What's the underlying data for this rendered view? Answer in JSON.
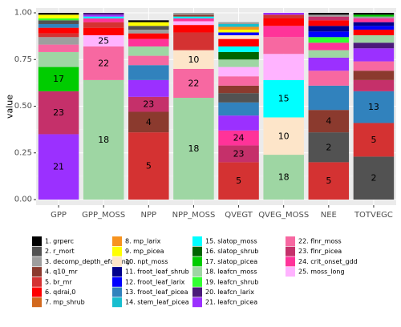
{
  "chart_data": {
    "type": "bar",
    "stacked": true,
    "title": "",
    "xlabel": "",
    "ylabel": "value",
    "ylim": [
      0,
      1
    ],
    "yticks": [
      "0.00",
      "0.25",
      "0.50",
      "0.75",
      "1.00"
    ],
    "categories": [
      "GPP",
      "GPP_MOSS",
      "NPP",
      "NPP_MOSS",
      "QVEGT",
      "QVEG_MOSS",
      "NEE",
      "TOTVEGC"
    ],
    "legend_position": "bottom",
    "params": [
      {
        "id": 1,
        "name": "grperc",
        "color": "#000000"
      },
      {
        "id": 2,
        "name": "r_mort",
        "color": "#525252"
      },
      {
        "id": 3,
        "name": "decomp_depth_efolding",
        "color": "#9e9e9e"
      },
      {
        "id": 4,
        "name": "q10_mr",
        "color": "#8b3a2e"
      },
      {
        "id": 5,
        "name": "br_mr",
        "color": "#d43232"
      },
      {
        "id": 6,
        "name": "qdrai,0",
        "color": "#ff0000"
      },
      {
        "id": 7,
        "name": "mp_shrub",
        "color": "#d2691e"
      },
      {
        "id": 8,
        "name": "mp_larix",
        "color": "#f7931e"
      },
      {
        "id": 9,
        "name": "mp_picea",
        "color": "#ffff00"
      },
      {
        "id": 10,
        "name": "npt_moss",
        "color": "#fde5c9"
      },
      {
        "id": 11,
        "name": "froot_leaf_shrub",
        "color": "#00008b"
      },
      {
        "id": 12,
        "name": "froot_leaf_larix",
        "color": "#0000ff"
      },
      {
        "id": 13,
        "name": "froot_leaf_picea",
        "color": "#3182bd"
      },
      {
        "id": 14,
        "name": "stem_leaf_picea",
        "color": "#17becf"
      },
      {
        "id": 15,
        "name": "slatop_moss",
        "color": "#00ffff"
      },
      {
        "id": 16,
        "name": "slatop_shrub",
        "color": "#006400"
      },
      {
        "id": 17,
        "name": "slatop_picea",
        "color": "#00cc00"
      },
      {
        "id": 18,
        "name": "leafcn_moss",
        "color": "#9ed6a3"
      },
      {
        "id": 19,
        "name": "leafcn_shrub",
        "color": "#33ff33"
      },
      {
        "id": 20,
        "name": "leafcn_larix",
        "color": "#4b1a7a"
      },
      {
        "id": 21,
        "name": "leafcn_picea",
        "color": "#9b30ff"
      },
      {
        "id": 22,
        "name": "flnr_moss",
        "color": "#f768a1"
      },
      {
        "id": 23,
        "name": "flnr_picea",
        "color": "#c5306a"
      },
      {
        "id": 24,
        "name": "crit_onset_gdd",
        "color": "#ff3399"
      },
      {
        "id": 25,
        "name": "moss_long",
        "color": "#ffb3ff"
      }
    ],
    "bars": [
      {
        "category": "GPP",
        "segments": [
          {
            "p": 21,
            "v": 0.35,
            "label": "21"
          },
          {
            "p": 23,
            "v": 0.23,
            "label": "23"
          },
          {
            "p": 17,
            "v": 0.13,
            "label": "17"
          },
          {
            "p": 18,
            "v": 0.08
          },
          {
            "p": 22,
            "v": 0.04
          },
          {
            "p": 3,
            "v": 0.04
          },
          {
            "p": 5,
            "v": 0.02
          },
          {
            "p": 6,
            "v": 0.03
          },
          {
            "p": 13,
            "v": 0.02
          },
          {
            "p": 2,
            "v": 0.02
          },
          {
            "p": 19,
            "v": 0.01
          },
          {
            "p": 9,
            "v": 0.02
          },
          {
            "p": 1,
            "v": 0.01
          }
        ]
      },
      {
        "category": "GPP_MOSS",
        "segments": [
          {
            "p": 18,
            "v": 0.64,
            "label": "18"
          },
          {
            "p": 22,
            "v": 0.18,
            "label": "22"
          },
          {
            "p": 25,
            "v": 0.06,
            "label": "25"
          },
          {
            "p": 6,
            "v": 0.04
          },
          {
            "p": 5,
            "v": 0.03
          },
          {
            "p": 24,
            "v": 0.02
          },
          {
            "p": 15,
            "v": 0.01
          },
          {
            "p": 21,
            "v": 0.01
          },
          {
            "p": 20,
            "v": 0.01
          }
        ]
      },
      {
        "category": "NPP",
        "segments": [
          {
            "p": 5,
            "v": 0.36,
            "label": "5"
          },
          {
            "p": 4,
            "v": 0.11,
            "label": "4"
          },
          {
            "p": 23,
            "v": 0.08,
            "label": "23"
          },
          {
            "p": 21,
            "v": 0.09
          },
          {
            "p": 13,
            "v": 0.08
          },
          {
            "p": 22,
            "v": 0.05
          },
          {
            "p": 18,
            "v": 0.05
          },
          {
            "p": 24,
            "v": 0.04
          },
          {
            "p": 6,
            "v": 0.03
          },
          {
            "p": 3,
            "v": 0.02
          },
          {
            "p": 2,
            "v": 0.02
          },
          {
            "p": 9,
            "v": 0.02
          },
          {
            "p": 1,
            "v": 0.01
          }
        ]
      },
      {
        "category": "NPP_MOSS",
        "segments": [
          {
            "p": 18,
            "v": 0.545,
            "label": "18"
          },
          {
            "p": 22,
            "v": 0.155,
            "label": "22"
          },
          {
            "p": 10,
            "v": 0.1,
            "label": "10"
          },
          {
            "p": 5,
            "v": 0.095
          },
          {
            "p": 6,
            "v": 0.04
          },
          {
            "p": 25,
            "v": 0.02
          },
          {
            "p": 24,
            "v": 0.015
          },
          {
            "p": 15,
            "v": 0.01
          },
          {
            "p": 4,
            "v": 0.01
          },
          {
            "p": 3,
            "v": 0.01
          }
        ]
      },
      {
        "category": "QVEGT",
        "segments": [
          {
            "p": 5,
            "v": 0.2,
            "label": "5"
          },
          {
            "p": 23,
            "v": 0.09,
            "label": "23"
          },
          {
            "p": 24,
            "v": 0.08,
            "label": "24"
          },
          {
            "p": 21,
            "v": 0.08
          },
          {
            "p": 13,
            "v": 0.07
          },
          {
            "p": 2,
            "v": 0.05
          },
          {
            "p": 4,
            "v": 0.04
          },
          {
            "p": 22,
            "v": 0.05
          },
          {
            "p": 25,
            "v": 0.05
          },
          {
            "p": 18,
            "v": 0.04
          },
          {
            "p": 16,
            "v": 0.04
          },
          {
            "p": 15,
            "v": 0.03
          },
          {
            "p": 6,
            "v": 0.04
          },
          {
            "p": 10,
            "v": 0.02
          },
          {
            "p": 12,
            "v": 0.015
          },
          {
            "p": 9,
            "v": 0.015
          },
          {
            "p": 8,
            "v": 0.015
          },
          {
            "p": 14,
            "v": 0.015
          },
          {
            "p": 3,
            "v": 0.01
          }
        ]
      },
      {
        "category": "QVEG_MOSS",
        "segments": [
          {
            "p": 18,
            "v": 0.24,
            "label": "18"
          },
          {
            "p": 10,
            "v": 0.2,
            "label": "10"
          },
          {
            "p": 15,
            "v": 0.2,
            "label": "15"
          },
          {
            "p": 25,
            "v": 0.14
          },
          {
            "p": 22,
            "v": 0.09
          },
          {
            "p": 24,
            "v": 0.06
          },
          {
            "p": 6,
            "v": 0.04
          },
          {
            "p": 5,
            "v": 0.02
          },
          {
            "p": 21,
            "v": 0.01
          }
        ]
      },
      {
        "category": "NEE",
        "segments": [
          {
            "p": 5,
            "v": 0.2,
            "label": "5"
          },
          {
            "p": 2,
            "v": 0.16,
            "label": "2"
          },
          {
            "p": 4,
            "v": 0.12,
            "label": "4"
          },
          {
            "p": 13,
            "v": 0.13
          },
          {
            "p": 22,
            "v": 0.08
          },
          {
            "p": 21,
            "v": 0.07
          },
          {
            "p": 18,
            "v": 0.04
          },
          {
            "p": 24,
            "v": 0.04
          },
          {
            "p": 19,
            "v": 0.03
          },
          {
            "p": 12,
            "v": 0.03
          },
          {
            "p": 11,
            "v": 0.03
          },
          {
            "p": 6,
            "v": 0.03
          },
          {
            "p": 23,
            "v": 0.02
          },
          {
            "p": 3,
            "v": 0.01
          },
          {
            "p": 1,
            "v": 0.01
          }
        ]
      },
      {
        "category": "TOTVEGC",
        "segments": [
          {
            "p": 2,
            "v": 0.23,
            "label": "2"
          },
          {
            "p": 5,
            "v": 0.18,
            "label": "5"
          },
          {
            "p": 13,
            "v": 0.17,
            "label": "13"
          },
          {
            "p": 23,
            "v": 0.06
          },
          {
            "p": 4,
            "v": 0.05
          },
          {
            "p": 22,
            "v": 0.05
          },
          {
            "p": 21,
            "v": 0.07
          },
          {
            "p": 20,
            "v": 0.03
          },
          {
            "p": 18,
            "v": 0.04
          },
          {
            "p": 6,
            "v": 0.03
          },
          {
            "p": 12,
            "v": 0.02
          },
          {
            "p": 11,
            "v": 0.02
          },
          {
            "p": 24,
            "v": 0.02
          },
          {
            "p": 3,
            "v": 0.01
          },
          {
            "p": 17,
            "v": 0.01
          },
          {
            "p": 1,
            "v": 0.01
          }
        ]
      }
    ]
  }
}
